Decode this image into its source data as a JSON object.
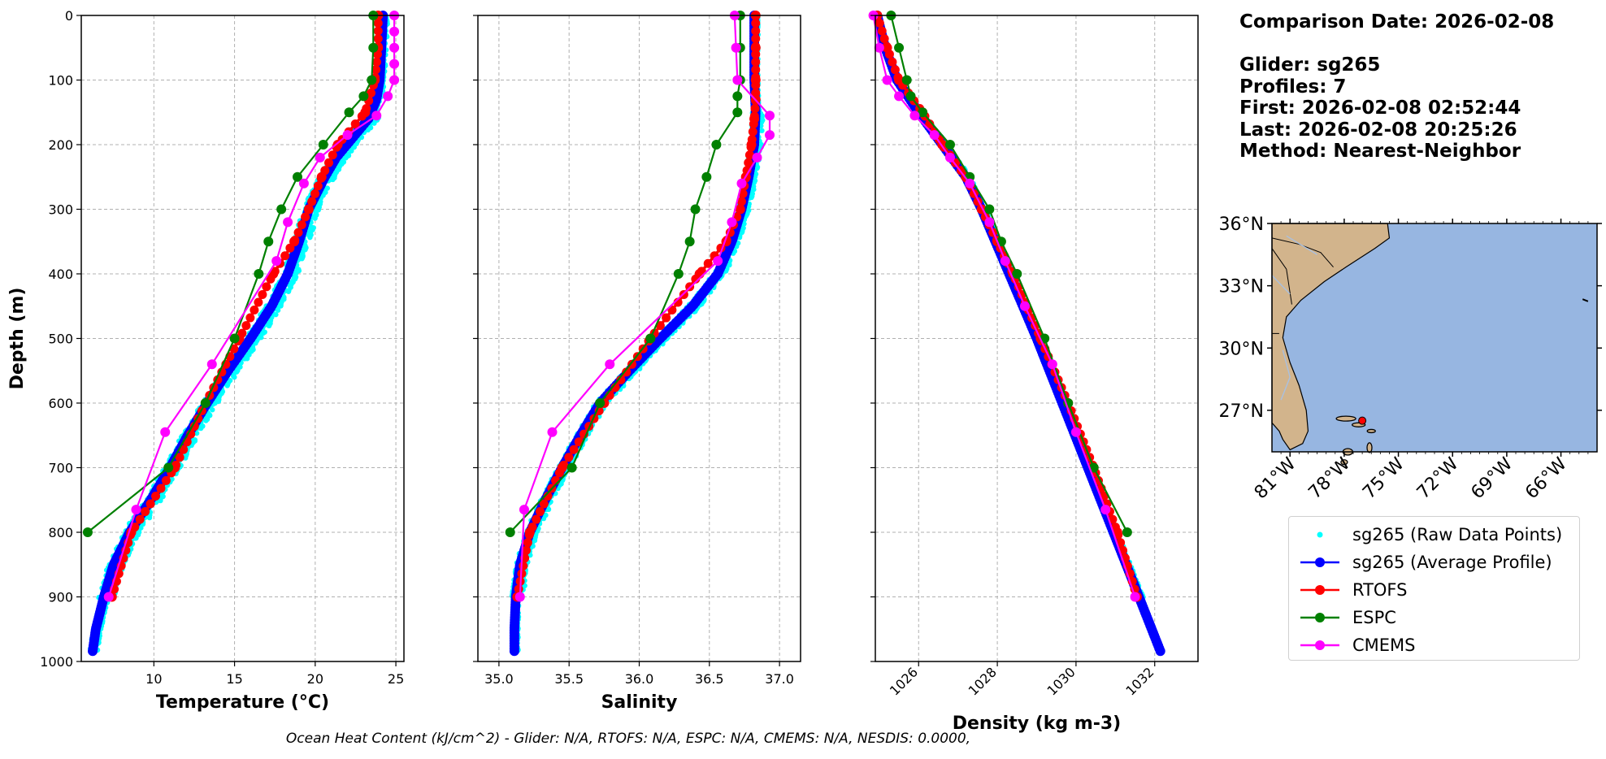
{
  "info": {
    "comparison_date": "Comparison Date: 2026-02-08",
    "glider": "Glider: sg265",
    "profiles": "Profiles: 7",
    "first": "First: 2026-02-08 02:52:44",
    "last": "Last: 2026-02-08 20:25:26",
    "method": "Method: Nearest-Neighbor"
  },
  "footer": "Ocean Heat Content (kJ/cm^2) - Glider: N/A,  RTOFS: N/A,  ESPC: N/A,  CMEMS: N/A,  NESDIS: 0.0000,",
  "legend": [
    {
      "label": "sg265 (Raw Data Points)",
      "color": "#00ffff",
      "style": "points"
    },
    {
      "label": "sg265 (Average Profile)",
      "color": "#0000ff",
      "style": "line-marker"
    },
    {
      "label": "RTOFS",
      "color": "#ff0000",
      "style": "line-marker"
    },
    {
      "label": "ESPC",
      "color": "#008000",
      "style": "line-marker"
    },
    {
      "label": "CMEMS",
      "color": "#ff00ff",
      "style": "line-marker"
    }
  ],
  "map": {
    "lat_ticks": [
      "36°N",
      "33°N",
      "30°N",
      "27°N"
    ],
    "lon_ticks": [
      "81°W",
      "78°W",
      "75°W",
      "72°W",
      "69°W",
      "66°W"
    ],
    "extent": {
      "lon": [
        -82,
        -64
      ],
      "lat": [
        25,
        36
      ]
    },
    "land_color": "#d2b48c",
    "ocean_color": "#97b6e1",
    "glider_position": {
      "lon": -77.0,
      "lat": 26.5
    }
  },
  "chart_data": [
    {
      "type": "line",
      "xlabel": "Temperature (°C)",
      "ylabel": "Depth (m)",
      "xlim": [
        5.5,
        25.5
      ],
      "ylim": [
        1000,
        0
      ],
      "xticks": [
        10,
        15,
        20,
        25
      ],
      "yticks": [
        0,
        100,
        200,
        300,
        400,
        500,
        600,
        700,
        800,
        900,
        1000
      ],
      "grid": true,
      "series": [
        {
          "name": "sg265 (Average Profile)",
          "color": "#0000ff",
          "depth": [
            0,
            50,
            100,
            130,
            160,
            190,
            220,
            250,
            280,
            300,
            350,
            400,
            450,
            500,
            550,
            600,
            650,
            700,
            750,
            800,
            850,
            900,
            950,
            985
          ],
          "values": [
            24.2,
            24.1,
            24.0,
            23.8,
            23.3,
            22.3,
            21.3,
            20.6,
            20.0,
            19.6,
            19.0,
            18.3,
            17.3,
            16.0,
            14.6,
            13.3,
            12.1,
            11.0,
            9.8,
            8.5,
            7.5,
            6.9,
            6.4,
            6.2
          ]
        },
        {
          "name": "RTOFS",
          "color": "#ff0000",
          "depth": [
            0,
            50,
            100,
            150,
            200,
            250,
            300,
            350,
            400,
            500,
            600,
            700,
            800,
            900
          ],
          "values": [
            23.9,
            23.9,
            23.7,
            23.1,
            21.4,
            20.4,
            19.6,
            18.7,
            17.4,
            15.3,
            13.2,
            11.3,
            8.6,
            7.4
          ]
        },
        {
          "name": "ESPC",
          "color": "#008000",
          "depth": [
            0,
            50,
            100,
            125,
            150,
            200,
            250,
            300,
            350,
            400,
            500,
            600,
            700,
            800
          ],
          "values": [
            23.6,
            23.6,
            23.5,
            23.0,
            22.1,
            20.5,
            18.9,
            17.9,
            17.1,
            16.5,
            15.0,
            13.2,
            10.9,
            5.9
          ]
        },
        {
          "name": "CMEMS",
          "color": "#ff00ff",
          "depth": [
            0,
            25,
            50,
            75,
            100,
            125,
            155,
            185,
            220,
            260,
            320,
            380,
            540,
            645,
            765,
            900
          ],
          "values": [
            24.9,
            24.9,
            24.9,
            24.9,
            24.9,
            24.5,
            23.8,
            22.0,
            20.3,
            19.3,
            18.3,
            17.6,
            13.6,
            10.7,
            8.9,
            7.2
          ]
        }
      ]
    },
    {
      "type": "line",
      "xlabel": "Salinity",
      "ylim": [
        1000,
        0
      ],
      "xlim": [
        34.85,
        37.15
      ],
      "xticks": [
        35.0,
        35.5,
        36.0,
        36.5,
        37.0
      ],
      "xticklabels": [
        "35.0",
        "35.5",
        "36.0",
        "36.5",
        "37.0"
      ],
      "grid": true,
      "series": [
        {
          "name": "sg265 (Average Profile)",
          "color": "#0000ff",
          "depth": [
            0,
            50,
            100,
            150,
            200,
            250,
            300,
            350,
            400,
            450,
            500,
            550,
            600,
            650,
            700,
            750,
            800,
            850,
            900,
            950,
            985
          ],
          "values": [
            36.82,
            36.82,
            36.82,
            36.83,
            36.82,
            36.78,
            36.73,
            36.66,
            36.56,
            36.38,
            36.15,
            35.93,
            35.72,
            35.58,
            35.45,
            35.33,
            35.22,
            35.15,
            35.12,
            35.11,
            35.11
          ]
        },
        {
          "name": "RTOFS",
          "color": "#ff0000",
          "depth": [
            0,
            50,
            100,
            130,
            160,
            200,
            250,
            300,
            350,
            400,
            500,
            600,
            700,
            800,
            900
          ],
          "values": [
            36.83,
            36.83,
            36.83,
            36.83,
            36.82,
            36.8,
            36.76,
            36.72,
            36.62,
            36.43,
            36.08,
            35.75,
            35.45,
            35.22,
            35.13
          ]
        },
        {
          "name": "ESPC",
          "color": "#008000",
          "depth": [
            0,
            50,
            100,
            125,
            150,
            200,
            250,
            300,
            350,
            400,
            500,
            600,
            700,
            800
          ],
          "values": [
            36.72,
            36.72,
            36.72,
            36.7,
            36.7,
            36.55,
            36.48,
            36.4,
            36.36,
            36.28,
            36.08,
            35.72,
            35.52,
            35.08
          ]
        },
        {
          "name": "CMEMS",
          "color": "#ff00ff",
          "depth": [
            0,
            50,
            100,
            155,
            185,
            220,
            260,
            320,
            380,
            540,
            645,
            765,
            900
          ],
          "values": [
            36.68,
            36.69,
            36.7,
            36.93,
            36.93,
            36.84,
            36.73,
            36.66,
            36.56,
            35.79,
            35.38,
            35.18,
            35.15
          ]
        }
      ]
    },
    {
      "type": "line",
      "xlabel": "Density (kg m-3)",
      "ylim": [
        1000,
        0
      ],
      "xlim": [
        1024.9,
        1033.1
      ],
      "xticks": [
        1026,
        1028,
        1030,
        1032
      ],
      "grid": true,
      "series": [
        {
          "name": "sg265 (Average Profile)",
          "color": "#0000ff",
          "depth": [
            0,
            50,
            100,
            150,
            200,
            250,
            300,
            400,
            500,
            600,
            700,
            800,
            900,
            985
          ],
          "values": [
            1024.95,
            1025.15,
            1025.45,
            1026.0,
            1026.6,
            1027.2,
            1027.6,
            1028.3,
            1029.0,
            1029.65,
            1030.3,
            1030.95,
            1031.6,
            1032.15
          ]
        },
        {
          "name": "RTOFS",
          "color": "#ff0000",
          "depth": [
            0,
            50,
            100,
            150,
            200,
            250,
            300,
            350,
            400,
            500,
            600,
            700,
            800,
            900
          ],
          "values": [
            1024.95,
            1025.2,
            1025.5,
            1026.1,
            1026.6,
            1027.2,
            1027.6,
            1028.0,
            1028.4,
            1029.1,
            1029.8,
            1030.45,
            1031.05,
            1031.55
          ]
        },
        {
          "name": "ESPC",
          "color": "#008000",
          "depth": [
            0,
            50,
            100,
            125,
            150,
            200,
            250,
            300,
            350,
            400,
            500,
            600,
            700,
            800
          ],
          "values": [
            1025.3,
            1025.5,
            1025.7,
            1025.8,
            1026.1,
            1026.8,
            1027.3,
            1027.8,
            1028.1,
            1028.5,
            1029.2,
            1029.8,
            1030.45,
            1031.3
          ]
        },
        {
          "name": "CMEMS",
          "color": "#ff00ff",
          "depth": [
            0,
            50,
            100,
            125,
            155,
            185,
            220,
            260,
            320,
            380,
            450,
            540,
            645,
            765,
            900
          ],
          "values": [
            1024.85,
            1025.0,
            1025.2,
            1025.5,
            1025.9,
            1026.4,
            1026.8,
            1027.3,
            1027.8,
            1028.2,
            1028.7,
            1029.4,
            1030.0,
            1030.75,
            1031.5
          ]
        }
      ]
    }
  ]
}
